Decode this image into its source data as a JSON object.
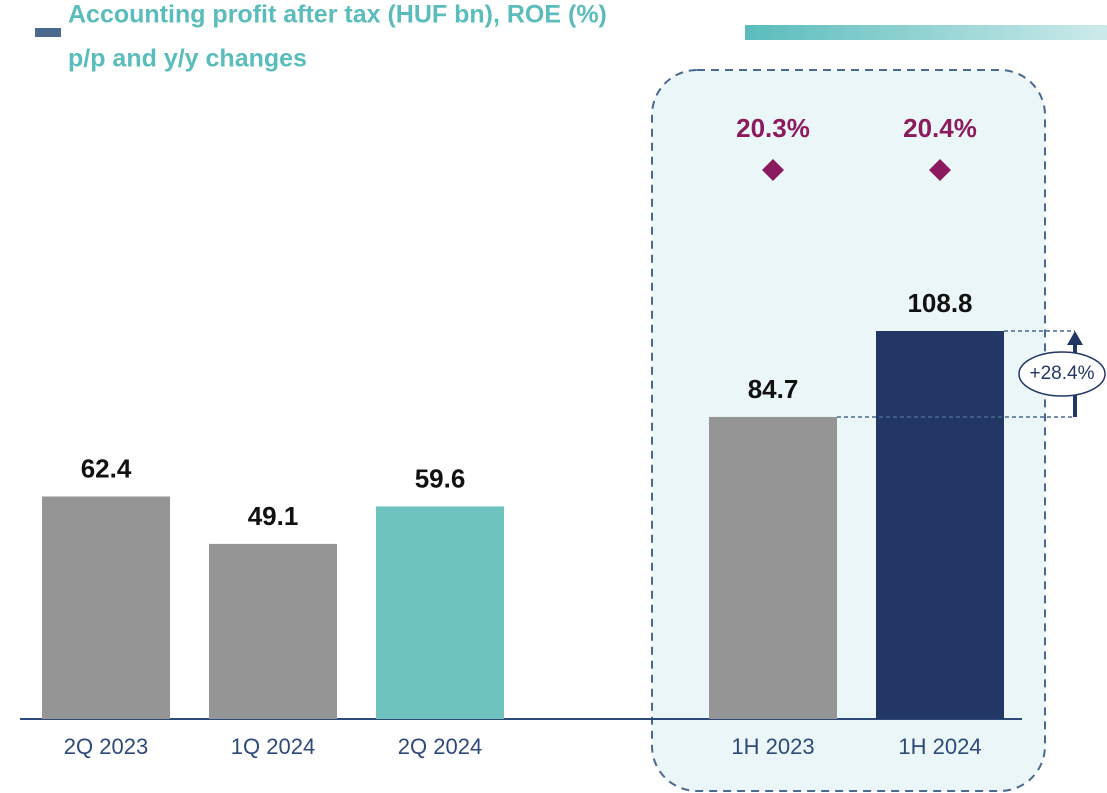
{
  "chart_data": {
    "type": "bar",
    "title": "Accounting profit after tax (HUF bn), ROE (%)",
    "subtitle": "p/p and y/y changes",
    "categories": [
      "2Q 2023",
      "1Q 2024",
      "2Q 2024",
      "1H 2023",
      "1H 2024"
    ],
    "values": [
      62.4,
      49.1,
      59.6,
      84.7,
      108.8
    ],
    "colors": [
      "#959595",
      "#959595",
      "#6fc3bf",
      "#959595",
      "#233766"
    ],
    "roe": {
      "name": "ROE (%)",
      "color": "#8b1a5e",
      "values": [
        null,
        null,
        null,
        20.3,
        20.4
      ],
      "value_labels": [
        null,
        null,
        null,
        "20.3%",
        "20.4%"
      ]
    },
    "annotations": [
      "+28.4%"
    ]
  }
}
